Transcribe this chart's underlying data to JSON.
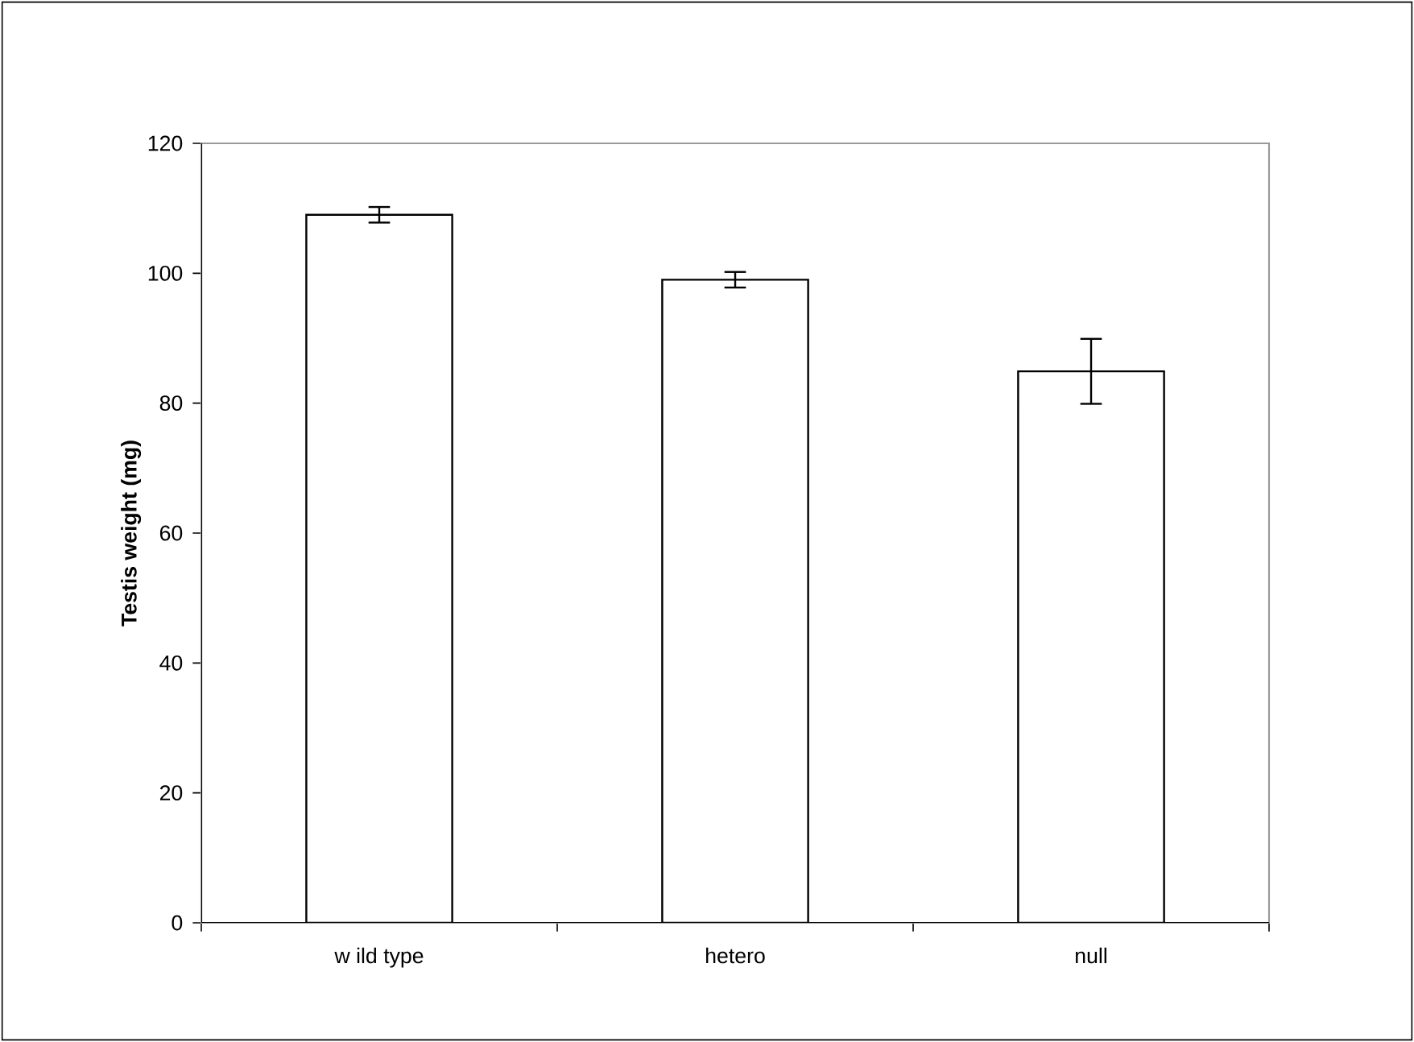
{
  "chart_data": {
    "type": "bar",
    "ylabel": "Testis weight (mg)",
    "categories": [
      "w ild type",
      "hetero",
      "null"
    ],
    "values": [
      109,
      99,
      84.9
    ],
    "errors": [
      1.2,
      1.2,
      5
    ],
    "color": "#ffffff",
    "ylim": [
      0,
      120
    ],
    "yticks": [
      0,
      20,
      40,
      60,
      80,
      100,
      120
    ]
  }
}
